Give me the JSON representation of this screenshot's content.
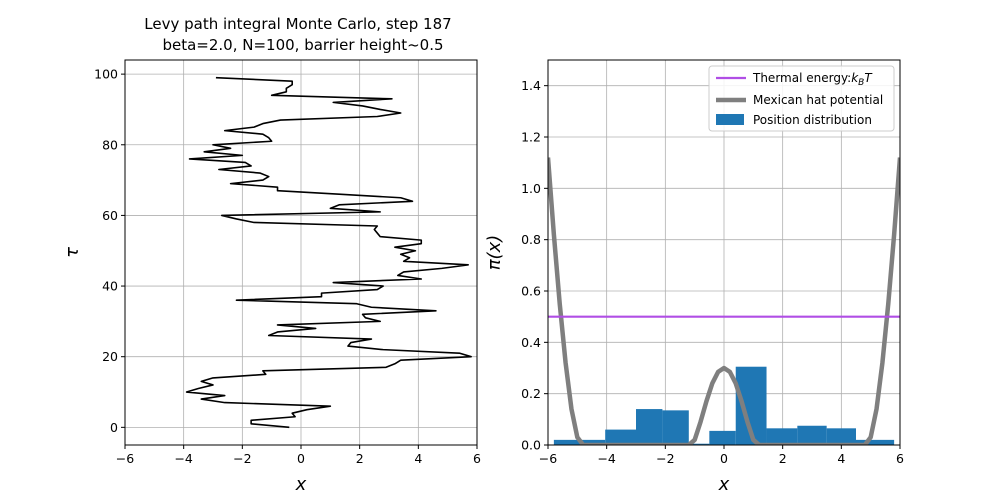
{
  "title_line1": "Levy path integral Monte Carlo, step 187",
  "title_line2": "beta=2.0, N=100, barrier height$\\sim$0.5",
  "chart_data": [
    {
      "type": "line",
      "xlabel": "x",
      "ylabel": "τ",
      "xlim": [
        -6,
        6
      ],
      "ylim": [
        -5,
        104
      ],
      "xticks": [
        -6,
        -4,
        -2,
        0,
        2,
        4,
        6
      ],
      "yticks": [
        0,
        20,
        40,
        60,
        80,
        100
      ],
      "grid": true,
      "line_color": "#000000",
      "series": [
        {
          "points": [
            [
              -0.4,
              0
            ],
            [
              -1.7,
              1
            ],
            [
              -1.7,
              2
            ],
            [
              -0.2,
              3
            ],
            [
              -0.3,
              4
            ],
            [
              0.2,
              5
            ],
            [
              1.0,
              6
            ],
            [
              -2.6,
              7
            ],
            [
              -3.4,
              8
            ],
            [
              -2.6,
              9
            ],
            [
              -3.9,
              10
            ],
            [
              -3.5,
              11
            ],
            [
              -3.0,
              12
            ],
            [
              -3.4,
              13
            ],
            [
              -3.0,
              14
            ],
            [
              -1.2,
              15
            ],
            [
              -1.3,
              16
            ],
            [
              2.9,
              17
            ],
            [
              3.2,
              18
            ],
            [
              3.4,
              19
            ],
            [
              5.8,
              20
            ],
            [
              5.4,
              21
            ],
            [
              2.8,
              22
            ],
            [
              1.6,
              23
            ],
            [
              1.7,
              24
            ],
            [
              2.4,
              25
            ],
            [
              -1.1,
              26
            ],
            [
              -0.8,
              27
            ],
            [
              0.5,
              28
            ],
            [
              -0.8,
              29
            ],
            [
              2.7,
              30
            ],
            [
              2.2,
              31
            ],
            [
              2.1,
              32
            ],
            [
              4.6,
              33
            ],
            [
              2.4,
              34
            ],
            [
              1.9,
              35
            ],
            [
              -2.2,
              36
            ],
            [
              0.7,
              37
            ],
            [
              0.7,
              38
            ],
            [
              2.6,
              39
            ],
            [
              2.8,
              40
            ],
            [
              1.1,
              41
            ],
            [
              4.1,
              42
            ],
            [
              3.3,
              43
            ],
            [
              3.5,
              44
            ],
            [
              4.8,
              45
            ],
            [
              5.7,
              46
            ],
            [
              3.5,
              47
            ],
            [
              3.7,
              48
            ],
            [
              3.4,
              49
            ],
            [
              3.9,
              50
            ],
            [
              3.2,
              51
            ],
            [
              4.1,
              52
            ],
            [
              4.1,
              53
            ],
            [
              2.7,
              54
            ],
            [
              2.6,
              55
            ],
            [
              2.5,
              56
            ],
            [
              2.6,
              57
            ],
            [
              -1.6,
              58
            ],
            [
              -2.2,
              59
            ],
            [
              -2.7,
              60
            ],
            [
              2.7,
              61
            ],
            [
              1.0,
              62
            ],
            [
              1.3,
              63
            ],
            [
              3.8,
              64
            ],
            [
              3.4,
              65
            ],
            [
              1.3,
              66
            ],
            [
              -0.8,
              67
            ],
            [
              -0.8,
              68
            ],
            [
              -2.4,
              69
            ],
            [
              -1.3,
              70
            ],
            [
              -1.1,
              71
            ],
            [
              -1.4,
              72
            ],
            [
              -2.8,
              73
            ],
            [
              -1.7,
              74
            ],
            [
              -1.9,
              75
            ],
            [
              -3.8,
              76
            ],
            [
              -2.0,
              77
            ],
            [
              -3.3,
              78
            ],
            [
              -2.4,
              79
            ],
            [
              -3.0,
              80
            ],
            [
              -1.0,
              81
            ],
            [
              -1.1,
              82
            ],
            [
              -1.3,
              83
            ],
            [
              -2.6,
              84
            ],
            [
              -1.6,
              85
            ],
            [
              -1.3,
              86
            ],
            [
              -0.7,
              87
            ],
            [
              2.6,
              88
            ],
            [
              3.4,
              89
            ],
            [
              2.7,
              90
            ],
            [
              2.1,
              91
            ],
            [
              1.1,
              92
            ],
            [
              3.1,
              93
            ],
            [
              -1.0,
              94
            ],
            [
              -0.5,
              95
            ],
            [
              -0.5,
              96
            ],
            [
              -0.3,
              97
            ],
            [
              -0.3,
              98
            ],
            [
              -2.9,
              99
            ]
          ]
        }
      ]
    },
    {
      "type": "bar",
      "xlabel": "x",
      "ylabel": "π(x)",
      "xlim": [
        -6,
        6
      ],
      "ylim": [
        0,
        1.5
      ],
      "xticks": [
        -6,
        -4,
        -2,
        0,
        2,
        4,
        6
      ],
      "yticks": [
        0.0,
        0.2,
        0.4,
        0.6,
        0.8,
        1.0,
        1.2,
        1.4
      ],
      "grid": true,
      "legend_position": "top-right",
      "histogram": {
        "name": "Position distribution",
        "color": "#1f77b4",
        "bin_edges": [
          -5.8,
          -4.05,
          -3.0,
          -2.1,
          -1.2,
          -0.5,
          0.4,
          1.45,
          2.5,
          3.5,
          4.5,
          5.8
        ],
        "heights": [
          0.02,
          0.06,
          0.14,
          0.135,
          0.005,
          0.055,
          0.305,
          0.065,
          0.075,
          0.065,
          0.02
        ]
      },
      "thermal_energy": {
        "name": "Thermal energy:$k_B T$",
        "value": 0.5,
        "color": "#b04ee5"
      },
      "potential": {
        "name": "Mexican hat potential",
        "color": "#7f7f7f",
        "points": [
          [
            -6,
            1.12
          ],
          [
            -5.8,
            0.82
          ],
          [
            -5.6,
            0.55
          ],
          [
            -5.4,
            0.32
          ],
          [
            -5.2,
            0.14
          ],
          [
            -5.0,
            0.03
          ],
          [
            -4.8,
            0.0
          ],
          [
            -4.5,
            0.0
          ],
          [
            -4.0,
            0.0
          ],
          [
            -3.0,
            0.0
          ],
          [
            -2.0,
            0.0
          ],
          [
            -1.5,
            0.0
          ],
          [
            -1.2,
            0.0
          ],
          [
            -1.0,
            0.02
          ],
          [
            -0.8,
            0.09
          ],
          [
            -0.6,
            0.17
          ],
          [
            -0.4,
            0.24
          ],
          [
            -0.2,
            0.285
          ],
          [
            0.0,
            0.3
          ],
          [
            0.2,
            0.285
          ],
          [
            0.4,
            0.24
          ],
          [
            0.6,
            0.17
          ],
          [
            0.8,
            0.09
          ],
          [
            1.0,
            0.02
          ],
          [
            1.2,
            0.0
          ],
          [
            1.5,
            0.0
          ],
          [
            2.0,
            0.0
          ],
          [
            3.0,
            0.0
          ],
          [
            4.0,
            0.0
          ],
          [
            4.5,
            0.0
          ],
          [
            4.8,
            0.0
          ],
          [
            5.0,
            0.03
          ],
          [
            5.2,
            0.14
          ],
          [
            5.4,
            0.32
          ],
          [
            5.6,
            0.55
          ],
          [
            5.8,
            0.82
          ],
          [
            6,
            1.12
          ]
        ]
      }
    }
  ]
}
